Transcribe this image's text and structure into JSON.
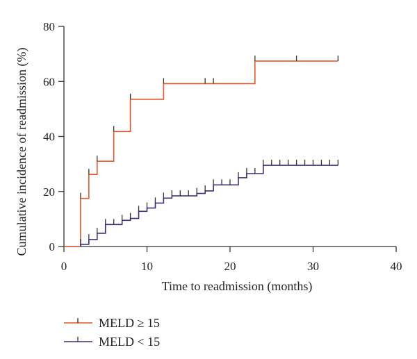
{
  "chart_data": {
    "type": "line",
    "title": "",
    "xlabel": "Time to readmission (months)",
    "ylabel": "Cumulative incidence of readmission (%)",
    "xlim": [
      0,
      40
    ],
    "ylim": [
      0,
      80
    ],
    "xticks": [
      0,
      10,
      20,
      30,
      40
    ],
    "yticks": [
      0,
      20,
      40,
      60,
      80
    ],
    "grid": false,
    "legend_position": "bottom-left",
    "step": true,
    "series": [
      {
        "name": "MELD ≥ 15",
        "color": "#e2572b",
        "steps": [
          [
            0,
            0
          ],
          [
            2,
            0
          ],
          [
            2,
            17.5
          ],
          [
            3,
            17.5
          ],
          [
            3,
            26.2
          ],
          [
            4,
            26.2
          ],
          [
            4,
            31
          ],
          [
            6,
            31
          ],
          [
            6,
            41.8
          ],
          [
            8,
            41.8
          ],
          [
            8,
            53.5
          ],
          [
            12,
            53.5
          ],
          [
            12,
            59.2
          ],
          [
            23,
            59.2
          ],
          [
            23,
            67.4
          ],
          [
            33,
            67.4
          ]
        ],
        "censored": [
          [
            2,
            17.5
          ],
          [
            3,
            26.2
          ],
          [
            4,
            31
          ],
          [
            6,
            41.8
          ],
          [
            8,
            53.5
          ],
          [
            12,
            59.2
          ],
          [
            17,
            59.2
          ],
          [
            18,
            59.2
          ],
          [
            23,
            67.4
          ],
          [
            28,
            67.4
          ],
          [
            33,
            67.4
          ]
        ]
      },
      {
        "name": "MELD < 15",
        "color": "#3b2c7a",
        "steps": [
          [
            2,
            0
          ],
          [
            2,
            0.8
          ],
          [
            3,
            0.8
          ],
          [
            3,
            2.5
          ],
          [
            4,
            2.5
          ],
          [
            4,
            4.8
          ],
          [
            5,
            4.8
          ],
          [
            5,
            8
          ],
          [
            7,
            8
          ],
          [
            7,
            9.5
          ],
          [
            8,
            9.5
          ],
          [
            8,
            10.2
          ],
          [
            9,
            10.2
          ],
          [
            9,
            12.8
          ],
          [
            10,
            12.8
          ],
          [
            10,
            14
          ],
          [
            11,
            14
          ],
          [
            11,
            15.8
          ],
          [
            12,
            15.8
          ],
          [
            12,
            17.6
          ],
          [
            13,
            17.6
          ],
          [
            13,
            18.4
          ],
          [
            16,
            18.4
          ],
          [
            16,
            19.3
          ],
          [
            17,
            19.3
          ],
          [
            17,
            20.2
          ],
          [
            18,
            20.2
          ],
          [
            18,
            22.4
          ],
          [
            21,
            22.4
          ],
          [
            21,
            25
          ],
          [
            22,
            25
          ],
          [
            22,
            26.5
          ],
          [
            24,
            26.5
          ],
          [
            24,
            29.5
          ],
          [
            33,
            29.5
          ]
        ],
        "censored": [
          [
            2,
            0.8
          ],
          [
            3,
            2.5
          ],
          [
            4,
            4.8
          ],
          [
            5,
            8
          ],
          [
            6,
            8
          ],
          [
            7,
            9.5
          ],
          [
            8,
            10.2
          ],
          [
            9,
            12.8
          ],
          [
            10,
            14
          ],
          [
            11,
            15.8
          ],
          [
            12,
            17.6
          ],
          [
            13,
            18.4
          ],
          [
            14,
            18.4
          ],
          [
            15,
            18.4
          ],
          [
            16,
            19.3
          ],
          [
            17,
            20.2
          ],
          [
            18,
            22.4
          ],
          [
            19,
            22.4
          ],
          [
            20,
            22.4
          ],
          [
            21,
            25
          ],
          [
            22,
            26.5
          ],
          [
            23,
            26.5
          ],
          [
            24,
            29.5
          ],
          [
            25,
            29.5
          ],
          [
            26,
            29.5
          ],
          [
            27,
            29.5
          ],
          [
            28,
            29.5
          ],
          [
            29,
            29.5
          ],
          [
            30,
            29.5
          ],
          [
            31,
            29.5
          ],
          [
            32,
            29.5
          ],
          [
            33,
            29.5
          ]
        ]
      }
    ]
  }
}
